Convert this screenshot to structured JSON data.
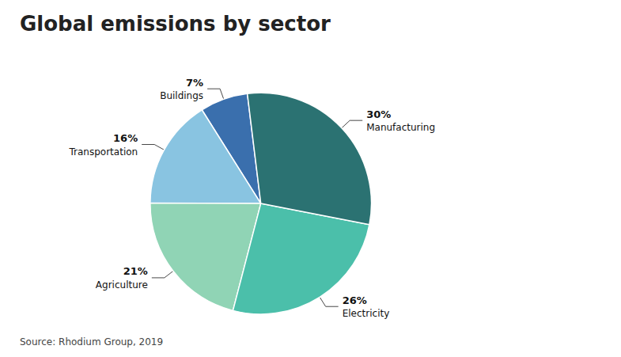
{
  "chart_data": {
    "type": "pie",
    "title": "Global emissions by sector",
    "source": "Source: Rhodium Group, 2019",
    "categories": [
      "Buildings",
      "Transportation",
      "Agriculture",
      "Electricity",
      "Manufacturing"
    ],
    "values": [
      7,
      16,
      21,
      26,
      30
    ],
    "value_labels": [
      "7%",
      "16%",
      "21%",
      "26%",
      "30%"
    ],
    "colors": [
      "#3a6fad",
      "#89c4e1",
      "#90d4b5",
      "#4bbfaa",
      "#2b7272"
    ]
  }
}
